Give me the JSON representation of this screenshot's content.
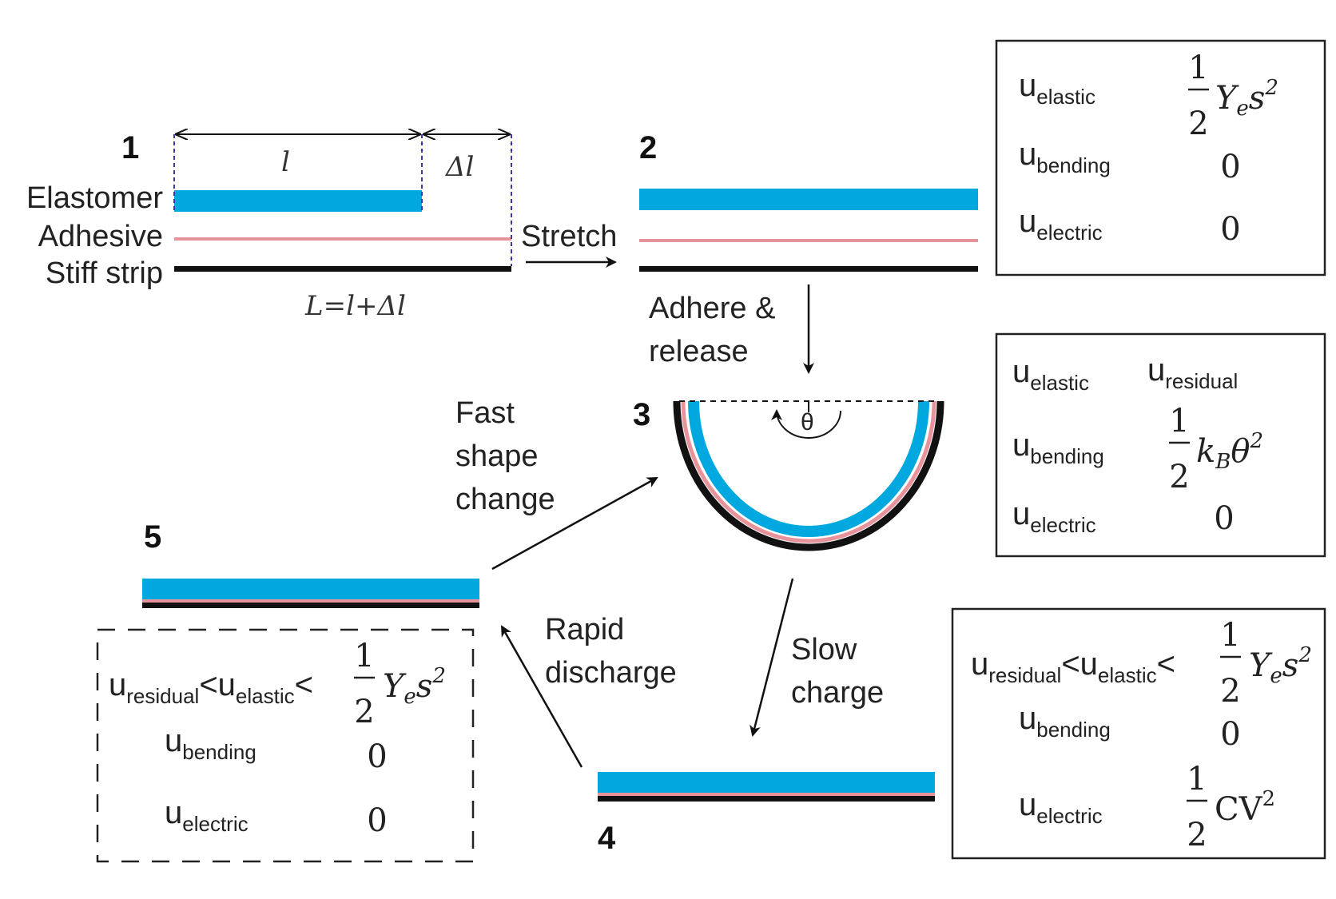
{
  "colors": {
    "elastomer": "#00a8e0",
    "adhesive": "#e8939c",
    "stiff": "#111111",
    "ink": "#222222",
    "dim_dash": "#3a3aa0"
  },
  "steps": {
    "s1": "1",
    "s2": "2",
    "s3": "3",
    "s4": "4",
    "s5": "5"
  },
  "layers": {
    "elastomer": "Elastomer",
    "adhesive": "Adhesive",
    "stiff": "Stiff strip"
  },
  "dims": {
    "l": "l",
    "dl": "Δl",
    "L": "L=l+Δl"
  },
  "arrows": {
    "stretch": "Stretch",
    "adhere_1": "Adhere &",
    "adhere_2": "release",
    "fast_1": "Fast",
    "fast_2": "shape",
    "fast_3": "change",
    "slow_1": "Slow",
    "slow_2": "charge",
    "rapid_1": "Rapid",
    "rapid_2": "discharge"
  },
  "theta": "θ",
  "sym": {
    "u": "u",
    "elastic": "elastic",
    "bending": "bending",
    "electric": "electric",
    "residual": "residual",
    "lt": "<",
    "zero": "0",
    "one": "1",
    "two": "2",
    "sq": "2",
    "Y": "Y",
    "e": "e",
    "s": "s",
    "k": "k",
    "B": "B",
    "th": "θ",
    "CV": "CV"
  }
}
